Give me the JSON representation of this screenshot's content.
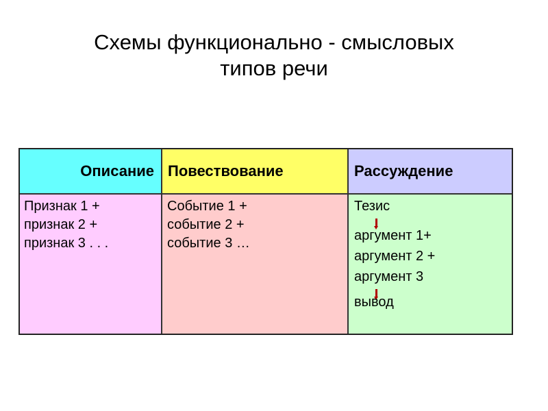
{
  "title": {
    "line1": "Схемы функционально - смысловых",
    "line2": "типов речи"
  },
  "table": {
    "headers": [
      "Описание",
      "Повествование",
      "Рассуждение"
    ],
    "header_colors": [
      "#66ffff",
      "#ffff66",
      "#ccccff"
    ],
    "body_colors": [
      "#ffccff",
      "#ffcccc",
      "#ccffcc"
    ],
    "description": [
      "Признак 1 +",
      "признак 2 +",
      "признак 3 . . ."
    ],
    "narration": [
      "Событие 1 +",
      "событие 2 +",
      "событие 3 …"
    ],
    "reasoning": [
      "Тезис",
      "аргумент 1+",
      "аргумент 2 +",
      "аргумент 3",
      "вывод"
    ],
    "arrow_icon": "down-arrow-icon",
    "arrow_color": "#b00000"
  }
}
